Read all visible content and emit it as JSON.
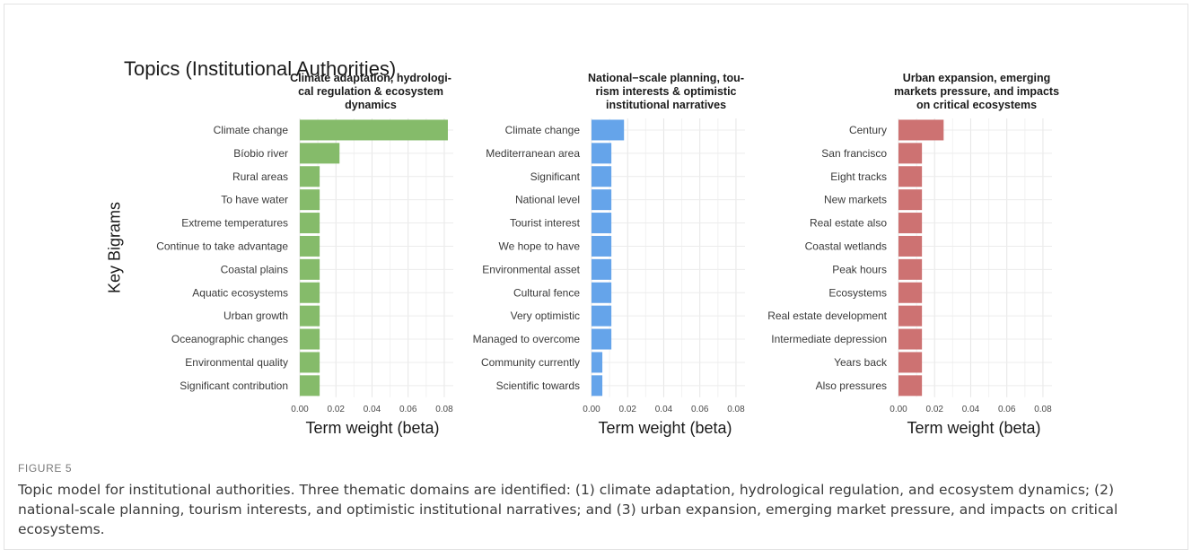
{
  "figure": {
    "title": "Topics (Institutional Authorities)",
    "ylabel": "Key Bigrams",
    "caption_head": "FIGURE 5",
    "caption": "Topic model for institutional authorities. Three thematic domains are identified: (1) climate adaptation, hydrological regulation, and ecosystem dynamics; (2) national-scale planning, tourism interests, and optimistic institutional narratives; and (3) urban expansion, emerging market pressure, and impacts on critical ecosystems."
  },
  "chart_data": [
    {
      "type": "bar",
      "orientation": "horizontal",
      "title": "Climate adaptation, hydrologi-\ncal regulation & ecosystem\ndynamics",
      "xlabel": "Term weight (beta)",
      "ylabel": "Key Bigrams",
      "color": "#85bb6a",
      "xlim": [
        0,
        0.085
      ],
      "xticks": [
        "0.00",
        "0.02",
        "0.04",
        "0.06",
        "0.08"
      ],
      "grid": true,
      "categories": [
        "Climate change",
        "Bíobio river",
        "Rural areas",
        "To have water",
        "Extreme temperatures",
        "Continue to take advantage",
        "Coastal plains",
        "Aquatic ecosystems",
        "Urban growth",
        "Oceanographic changes",
        "Environmental quality",
        "Significant contribution"
      ],
      "values": [
        0.082,
        0.022,
        0.011,
        0.011,
        0.011,
        0.011,
        0.011,
        0.011,
        0.011,
        0.011,
        0.011,
        0.011
      ]
    },
    {
      "type": "bar",
      "orientation": "horizontal",
      "title": "National−scale planning, tou-\nrism interests & optimistic\ninstitutional narratives",
      "xlabel": "Term weight (beta)",
      "color": "#65a4ea",
      "xlim": [
        0,
        0.085
      ],
      "xticks": [
        "0.00",
        "0.02",
        "0.04",
        "0.06",
        "0.08"
      ],
      "grid": true,
      "categories": [
        "Climate change",
        "Mediterranean area",
        "Significant",
        "National level",
        "Tourist interest",
        "We hope to have",
        "Environmental asset",
        "Cultural fence",
        "Very optimistic",
        "Managed to overcome",
        "Community currently",
        "Scientific towards"
      ],
      "values": [
        0.018,
        0.011,
        0.011,
        0.011,
        0.011,
        0.011,
        0.011,
        0.011,
        0.011,
        0.011,
        0.006,
        0.006
      ]
    },
    {
      "type": "bar",
      "orientation": "horizontal",
      "title": "Urban expansion, emerging\nmarkets pressure, and impacts\non critical ecosystems",
      "xlabel": "Term weight (beta)",
      "color": "#cd7272",
      "xlim": [
        0,
        0.085
      ],
      "xticks": [
        "0.00",
        "0.02",
        "0.04",
        "0.06",
        "0.08"
      ],
      "grid": true,
      "categories": [
        "Century",
        "San francisco",
        "Eight tracks",
        "New markets",
        "Real estate also",
        "Coastal wetlands",
        "Peak hours",
        "Ecosystems",
        "Real estate development",
        "Intermediate depression",
        "Years back",
        "Also pressures"
      ],
      "values": [
        0.025,
        0.013,
        0.013,
        0.013,
        0.013,
        0.013,
        0.013,
        0.013,
        0.013,
        0.013,
        0.013,
        0.013
      ]
    }
  ]
}
